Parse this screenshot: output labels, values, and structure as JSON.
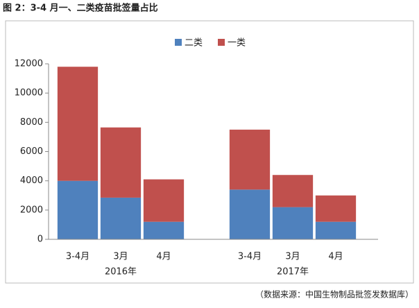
{
  "chart_data": {
    "type": "stacked_bar",
    "title": "图 2：3-4 月一、二类疫苗批签量占比",
    "source": "（数据来源：中国生物制品批签发数据库）",
    "categories": [
      "3-4月",
      "3月",
      "4月",
      null,
      "3-4月",
      "3月",
      "4月"
    ],
    "group_labels": [
      "2016年",
      "2017年"
    ],
    "series": [
      {
        "name": "二类",
        "color": "#4f81bd",
        "values": [
          4000,
          2850,
          1200,
          null,
          3400,
          2200,
          1200
        ]
      },
      {
        "name": "一类",
        "color": "#c0504d",
        "values": [
          7800,
          4800,
          2900,
          null,
          4100,
          2200,
          1800
        ]
      }
    ],
    "ylim": [
      0,
      12000
    ],
    "yticks": [
      0,
      2000,
      4000,
      6000,
      8000,
      10000,
      12000
    ],
    "legend": "top"
  }
}
